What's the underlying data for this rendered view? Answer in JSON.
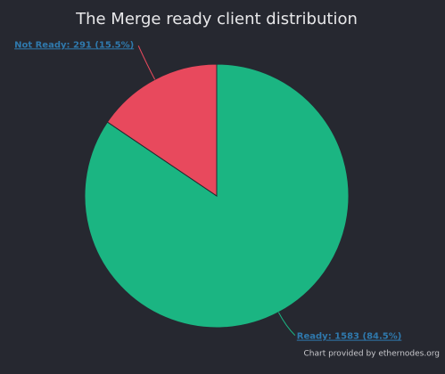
{
  "chart_data": {
    "type": "pie",
    "title": "The Merge ready client distribution",
    "values": [
      1583,
      291
    ],
    "value_labels": [
      "Ready: 1583 (84.5%)",
      "Not Ready: 291 (15.5%)"
    ],
    "colors": [
      "#1bb582",
      "#e8495d"
    ],
    "credit": "Chart provided by ethernodes.org"
  }
}
